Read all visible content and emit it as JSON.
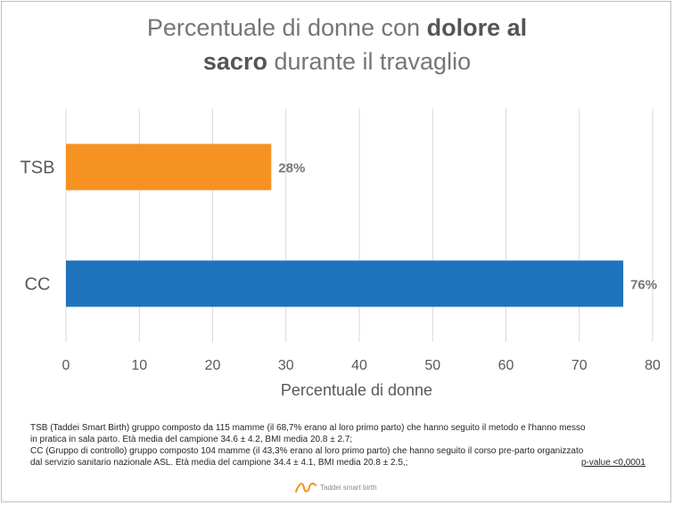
{
  "title": {
    "part1": "Percentuale di donne con ",
    "bold1": "dolore al",
    "bold2": "sacro",
    "part2": " durante il travaglio"
  },
  "chart_data": {
    "type": "bar",
    "orientation": "horizontal",
    "categories": [
      "TSB",
      "CC"
    ],
    "values": [
      28,
      76
    ],
    "value_labels": [
      "28%",
      "76%"
    ],
    "colors": [
      "#f59222",
      "#1f73bd"
    ],
    "xlabel": "Percentuale di donne",
    "xlim": [
      0,
      80
    ],
    "xticks": [
      0,
      10,
      20,
      30,
      40,
      50,
      60,
      70,
      80
    ],
    "grid": "vertical"
  },
  "notes": {
    "tsb_line1": "TSB (Taddei Smart Birth) gruppo composto da 115 mamme (il 68,7% erano al loro primo parto) che hanno seguito il metodo e l'hanno messo",
    "tsb_line2": "in pratica in sala parto. Età media del campione 34.6 ± 4.2, BMI media 20.8 ± 2.7;",
    "cc_line1": "CC (Gruppo di controllo) gruppo composto 104 mamme (il 43,3% erano al loro primo parto) che hanno seguito il corso pre-parto organizzato",
    "cc_line2": "dal servizio sanitario nazionale ASL. Età media del campione 34.4 ± 4.1, BMI media 20.8 ± 2.5,;",
    "pvalue": "p-value <0,0001"
  },
  "logo": {
    "text": "Taddei smart birth",
    "icon": "logo-swirl-icon",
    "color": "#f59222"
  }
}
